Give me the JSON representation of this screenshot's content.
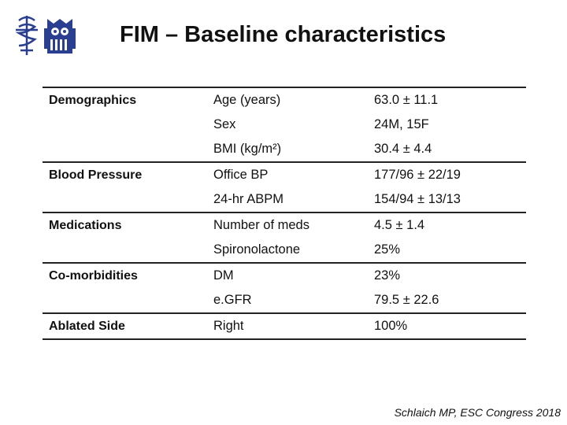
{
  "slide": {
    "title": "FIM – Baseline characteristics",
    "citation": "Schlaich MP, ESC Congress 2018"
  },
  "groups": [
    {
      "category": "Demographics",
      "rows": [
        {
          "param": "Age (years)",
          "value": "63.0 ± 11.1"
        },
        {
          "param": "Sex",
          "value": "24M, 15F"
        },
        {
          "param": "BMI (kg/m²)",
          "value": "30.4 ± 4.4"
        }
      ]
    },
    {
      "category": "Blood Pressure",
      "rows": [
        {
          "param": "Office BP",
          "value": "177/96 ± 22/19"
        },
        {
          "param": "24-hr ABPM",
          "value": "154/94 ± 13/13"
        }
      ]
    },
    {
      "category": "Medications",
      "rows": [
        {
          "param": "Number of meds",
          "value": "4.5 ± 1.4"
        },
        {
          "param": "Spironolactone",
          "value": "25%"
        }
      ]
    },
    {
      "category": "Co-morbidities",
      "rows": [
        {
          "param": "DM",
          "value": "23%"
        },
        {
          "param": "e.GFR",
          "value": "79.5 ± 22.6"
        }
      ]
    },
    {
      "category": "Ablated Side",
      "rows": [
        {
          "param": "Right",
          "value": "100%"
        }
      ]
    }
  ],
  "colors": {
    "logo": "#2a3f8f",
    "rule": "#222222"
  }
}
